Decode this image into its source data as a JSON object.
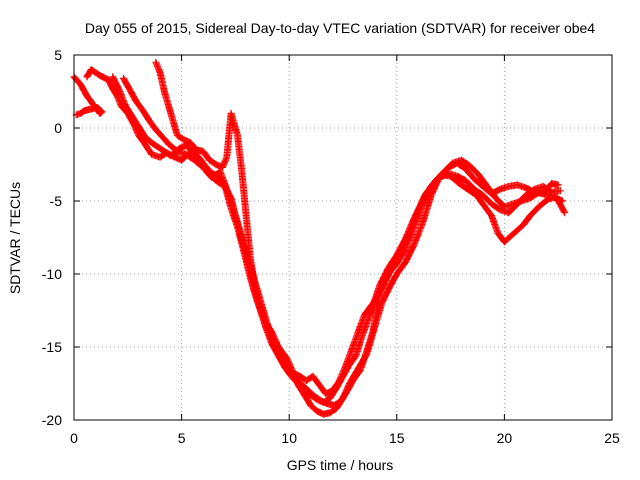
{
  "chart_data": {
    "type": "scatter",
    "title": "Day 055 of 2015, Sidereal Day-to-day VTEC variation (SDTVAR) for receiver obe4",
    "xlabel": "GPS time / hours",
    "ylabel": "SDTVAR / TECUs",
    "xlim": [
      0,
      25
    ],
    "ylim": [
      -20,
      5
    ],
    "xticks": [
      0,
      5,
      10,
      15,
      20,
      25
    ],
    "yticks": [
      -20,
      -15,
      -10,
      -5,
      0,
      5
    ],
    "grid": true,
    "marker": "plus",
    "color": "#ff0000",
    "traces": [
      [
        [
          0.0,
          3.5
        ],
        [
          0.3,
          3.0
        ],
        [
          0.6,
          2.2
        ],
        [
          0.9,
          1.6
        ],
        [
          1.2,
          1.0
        ],
        [
          1.3,
          1.1
        ],
        [
          1.1,
          1.4
        ],
        [
          0.8,
          1.3
        ],
        [
          0.5,
          1.2
        ],
        [
          0.3,
          1.0
        ],
        [
          0.1,
          0.9
        ]
      ],
      [
        [
          0.6,
          3.5
        ],
        [
          0.8,
          4.0
        ],
        [
          1.2,
          3.6
        ],
        [
          1.6,
          3.3
        ],
        [
          1.8,
          2.7
        ],
        [
          2.0,
          2.2
        ],
        [
          2.2,
          1.5
        ],
        [
          2.5,
          1.0
        ],
        [
          2.8,
          0.2
        ],
        [
          3.0,
          -0.5
        ],
        [
          3.3,
          -1.1
        ],
        [
          3.6,
          -1.8
        ],
        [
          4.0,
          -2.0
        ],
        [
          4.3,
          -1.7
        ],
        [
          4.7,
          -2.0
        ],
        [
          5.0,
          -2.2
        ],
        [
          5.3,
          -1.8
        ],
        [
          5.7,
          -2.3
        ],
        [
          6.0,
          -2.6
        ],
        [
          6.3,
          -3.2
        ],
        [
          6.6,
          -3.6
        ],
        [
          7.0,
          -4.0
        ],
        [
          7.3,
          -4.8
        ],
        [
          7.5,
          -6.0
        ],
        [
          7.8,
          -7.5
        ],
        [
          8.1,
          -9.0
        ],
        [
          8.4,
          -10.5
        ],
        [
          8.7,
          -12.0
        ],
        [
          9.0,
          -13.5
        ],
        [
          9.3,
          -14.5
        ],
        [
          9.6,
          -15.4
        ],
        [
          9.9,
          -16.3
        ],
        [
          10.2,
          -17.0
        ],
        [
          10.5,
          -17.8
        ],
        [
          10.8,
          -18.5
        ],
        [
          11.0,
          -19.0
        ],
        [
          11.3,
          -19.4
        ],
        [
          11.6,
          -19.6
        ],
        [
          11.9,
          -19.5
        ],
        [
          12.2,
          -19.2
        ],
        [
          12.5,
          -18.5
        ],
        [
          12.8,
          -17.5
        ],
        [
          13.2,
          -16.5
        ],
        [
          13.6,
          -15.5
        ],
        [
          14.0,
          -13.5
        ],
        [
          14.3,
          -12.0
        ],
        [
          14.7,
          -10.8
        ],
        [
          15.0,
          -10.0
        ],
        [
          15.4,
          -9.2
        ],
        [
          15.8,
          -8.0
        ],
        [
          16.2,
          -6.5
        ],
        [
          16.6,
          -4.6
        ],
        [
          17.0,
          -3.3
        ],
        [
          17.4,
          -2.7
        ],
        [
          17.8,
          -2.4
        ],
        [
          18.2,
          -2.8
        ],
        [
          18.6,
          -3.5
        ],
        [
          19.0,
          -4.0
        ],
        [
          19.4,
          -4.5
        ],
        [
          19.8,
          -4.2
        ],
        [
          20.2,
          -4.0
        ],
        [
          20.6,
          -3.9
        ],
        [
          21.0,
          -4.1
        ],
        [
          21.4,
          -4.4
        ],
        [
          21.8,
          -4.5
        ],
        [
          22.2,
          -3.8
        ],
        [
          22.5,
          -3.9
        ]
      ],
      [
        [
          1.8,
          3.5
        ],
        [
          2.1,
          2.6
        ],
        [
          2.4,
          1.5
        ],
        [
          2.7,
          0.8
        ],
        [
          3.0,
          0.1
        ],
        [
          3.3,
          -0.6
        ],
        [
          3.6,
          -1.0
        ],
        [
          3.9,
          -1.3
        ],
        [
          4.2,
          -1.6
        ],
        [
          4.5,
          -1.9
        ],
        [
          4.9,
          -1.4
        ],
        [
          5.2,
          -1.2
        ],
        [
          5.5,
          -1.6
        ],
        [
          5.8,
          -2.0
        ],
        [
          6.1,
          -2.6
        ],
        [
          6.4,
          -3.1
        ],
        [
          6.7,
          -3.3
        ],
        [
          7.0,
          -3.9
        ],
        [
          7.3,
          -5.5
        ],
        [
          7.6,
          -6.8
        ],
        [
          7.9,
          -8.5
        ],
        [
          8.2,
          -10.3
        ],
        [
          8.5,
          -11.8
        ],
        [
          8.8,
          -13.0
        ],
        [
          9.1,
          -14.3
        ],
        [
          9.4,
          -15.2
        ],
        [
          9.7,
          -16.0
        ],
        [
          10.0,
          -16.8
        ],
        [
          10.3,
          -17.2
        ],
        [
          10.6,
          -17.6
        ],
        [
          10.9,
          -18.0
        ],
        [
          11.2,
          -18.4
        ],
        [
          11.5,
          -18.7
        ],
        [
          11.8,
          -18.9
        ],
        [
          12.1,
          -19.0
        ],
        [
          12.4,
          -18.7
        ],
        [
          12.7,
          -18.0
        ],
        [
          13.0,
          -17.2
        ],
        [
          13.3,
          -16.6
        ],
        [
          13.6,
          -15.3
        ],
        [
          13.9,
          -13.9
        ],
        [
          14.2,
          -11.3
        ],
        [
          14.6,
          -10.0
        ],
        [
          15.0,
          -9.3
        ],
        [
          15.4,
          -8.3
        ],
        [
          15.8,
          -6.8
        ],
        [
          16.1,
          -5.6
        ],
        [
          16.4,
          -4.6
        ],
        [
          16.8,
          -3.6
        ],
        [
          17.2,
          -3.0
        ],
        [
          17.6,
          -2.4
        ],
        [
          18.0,
          -2.2
        ],
        [
          18.4,
          -2.6
        ],
        [
          18.8,
          -3.2
        ],
        [
          19.2,
          -4.0
        ],
        [
          19.6,
          -4.8
        ],
        [
          20.0,
          -5.4
        ],
        [
          20.4,
          -5.2
        ],
        [
          20.8,
          -5.0
        ],
        [
          21.2,
          -4.8
        ],
        [
          21.6,
          -4.4
        ],
        [
          22.0,
          -4.6
        ],
        [
          22.4,
          -4.8
        ],
        [
          22.7,
          -5.0
        ]
      ],
      [
        [
          3.8,
          4.5
        ],
        [
          4.0,
          3.8
        ],
        [
          4.2,
          2.5
        ],
        [
          4.5,
          1.0
        ],
        [
          4.8,
          -0.5
        ],
        [
          5.1,
          -0.8
        ],
        [
          5.4,
          -1.0
        ],
        [
          5.7,
          -1.5
        ],
        [
          6.0,
          -1.6
        ],
        [
          6.3,
          -2.2
        ],
        [
          6.6,
          -2.5
        ],
        [
          6.9,
          -2.7
        ],
        [
          7.1,
          -2.0
        ],
        [
          7.2,
          -0.5
        ],
        [
          7.3,
          1.0
        ],
        [
          7.4,
          0.5
        ],
        [
          7.6,
          -0.5
        ],
        [
          7.8,
          -3.0
        ],
        [
          8.0,
          -6.0
        ],
        [
          8.2,
          -9.0
        ],
        [
          8.5,
          -11.5
        ],
        [
          8.9,
          -13.3
        ],
        [
          9.2,
          -14.0
        ],
        [
          9.5,
          -15.0
        ],
        [
          9.9,
          -15.8
        ],
        [
          10.2,
          -16.8
        ],
        [
          10.5,
          -17.0
        ],
        [
          10.8,
          -17.3
        ],
        [
          11.1,
          -17.0
        ],
        [
          11.4,
          -17.6
        ],
        [
          11.7,
          -18.2
        ],
        [
          12.0,
          -18.0
        ],
        [
          12.3,
          -17.4
        ],
        [
          12.6,
          -16.4
        ],
        [
          12.9,
          -15.2
        ],
        [
          13.2,
          -14.0
        ],
        [
          13.5,
          -12.8
        ],
        [
          13.9,
          -12.0
        ],
        [
          14.3,
          -11.0
        ],
        [
          14.7,
          -9.8
        ],
        [
          15.1,
          -8.6
        ],
        [
          15.5,
          -7.4
        ],
        [
          15.9,
          -6.0
        ],
        [
          16.3,
          -4.6
        ],
        [
          16.7,
          -3.8
        ],
        [
          17.1,
          -3.2
        ],
        [
          17.5,
          -3.3
        ],
        [
          17.9,
          -3.8
        ],
        [
          18.3,
          -4.2
        ],
        [
          18.7,
          -4.6
        ],
        [
          19.1,
          -5.4
        ],
        [
          19.4,
          -6.0
        ],
        [
          19.7,
          -7.2
        ],
        [
          20.0,
          -7.8
        ],
        [
          20.3,
          -7.4
        ],
        [
          20.6,
          -7.0
        ],
        [
          20.9,
          -6.6
        ],
        [
          21.2,
          -6.0
        ],
        [
          21.6,
          -5.4
        ],
        [
          22.0,
          -4.9
        ],
        [
          22.4,
          -4.7
        ],
        [
          22.8,
          -5.8
        ]
      ],
      [
        [
          2.3,
          3.4
        ],
        [
          2.6,
          2.6
        ],
        [
          2.9,
          1.8
        ],
        [
          3.2,
          1.2
        ],
        [
          3.5,
          0.5
        ],
        [
          3.8,
          -0.1
        ],
        [
          4.1,
          -0.6
        ],
        [
          4.4,
          -1.1
        ],
        [
          4.8,
          -1.6
        ],
        [
          5.2,
          -1.8
        ],
        [
          5.6,
          -2.2
        ],
        [
          6.0,
          -2.7
        ],
        [
          6.4,
          -3.4
        ],
        [
          6.8,
          -3.0
        ],
        [
          7.1,
          -4.2
        ],
        [
          7.4,
          -5.5
        ],
        [
          7.7,
          -7.0
        ],
        [
          8.0,
          -8.8
        ],
        [
          8.3,
          -10.6
        ],
        [
          8.6,
          -12.2
        ],
        [
          8.9,
          -13.6
        ],
        [
          9.2,
          -14.8
        ],
        [
          9.5,
          -15.6
        ],
        [
          9.8,
          -16.4
        ],
        [
          10.1,
          -17.0
        ],
        [
          10.4,
          -17.5
        ],
        [
          10.7,
          -18.0
        ],
        [
          11.0,
          -18.3
        ],
        [
          11.3,
          -18.6
        ],
        [
          11.6,
          -18.8
        ],
        [
          11.9,
          -18.5
        ],
        [
          12.2,
          -17.8
        ],
        [
          12.5,
          -17.0
        ],
        [
          12.8,
          -16.2
        ],
        [
          13.1,
          -15.6
        ],
        [
          13.4,
          -14.2
        ],
        [
          13.8,
          -12.6
        ],
        [
          14.2,
          -10.8
        ],
        [
          14.6,
          -9.6
        ],
        [
          15.0,
          -8.7
        ],
        [
          15.4,
          -7.6
        ],
        [
          15.8,
          -6.2
        ],
        [
          16.2,
          -5.0
        ],
        [
          16.6,
          -4.0
        ],
        [
          17.0,
          -3.4
        ],
        [
          17.4,
          -3.1
        ],
        [
          17.8,
          -3.3
        ],
        [
          18.2,
          -3.6
        ],
        [
          18.6,
          -4.2
        ],
        [
          19.0,
          -4.6
        ],
        [
          19.4,
          -5.2
        ],
        [
          19.8,
          -5.6
        ],
        [
          20.2,
          -5.8
        ],
        [
          20.6,
          -5.2
        ],
        [
          21.0,
          -4.6
        ],
        [
          21.4,
          -4.2
        ],
        [
          21.8,
          -4.0
        ],
        [
          22.2,
          -4.4
        ],
        [
          22.6,
          -4.3
        ]
      ]
    ]
  }
}
